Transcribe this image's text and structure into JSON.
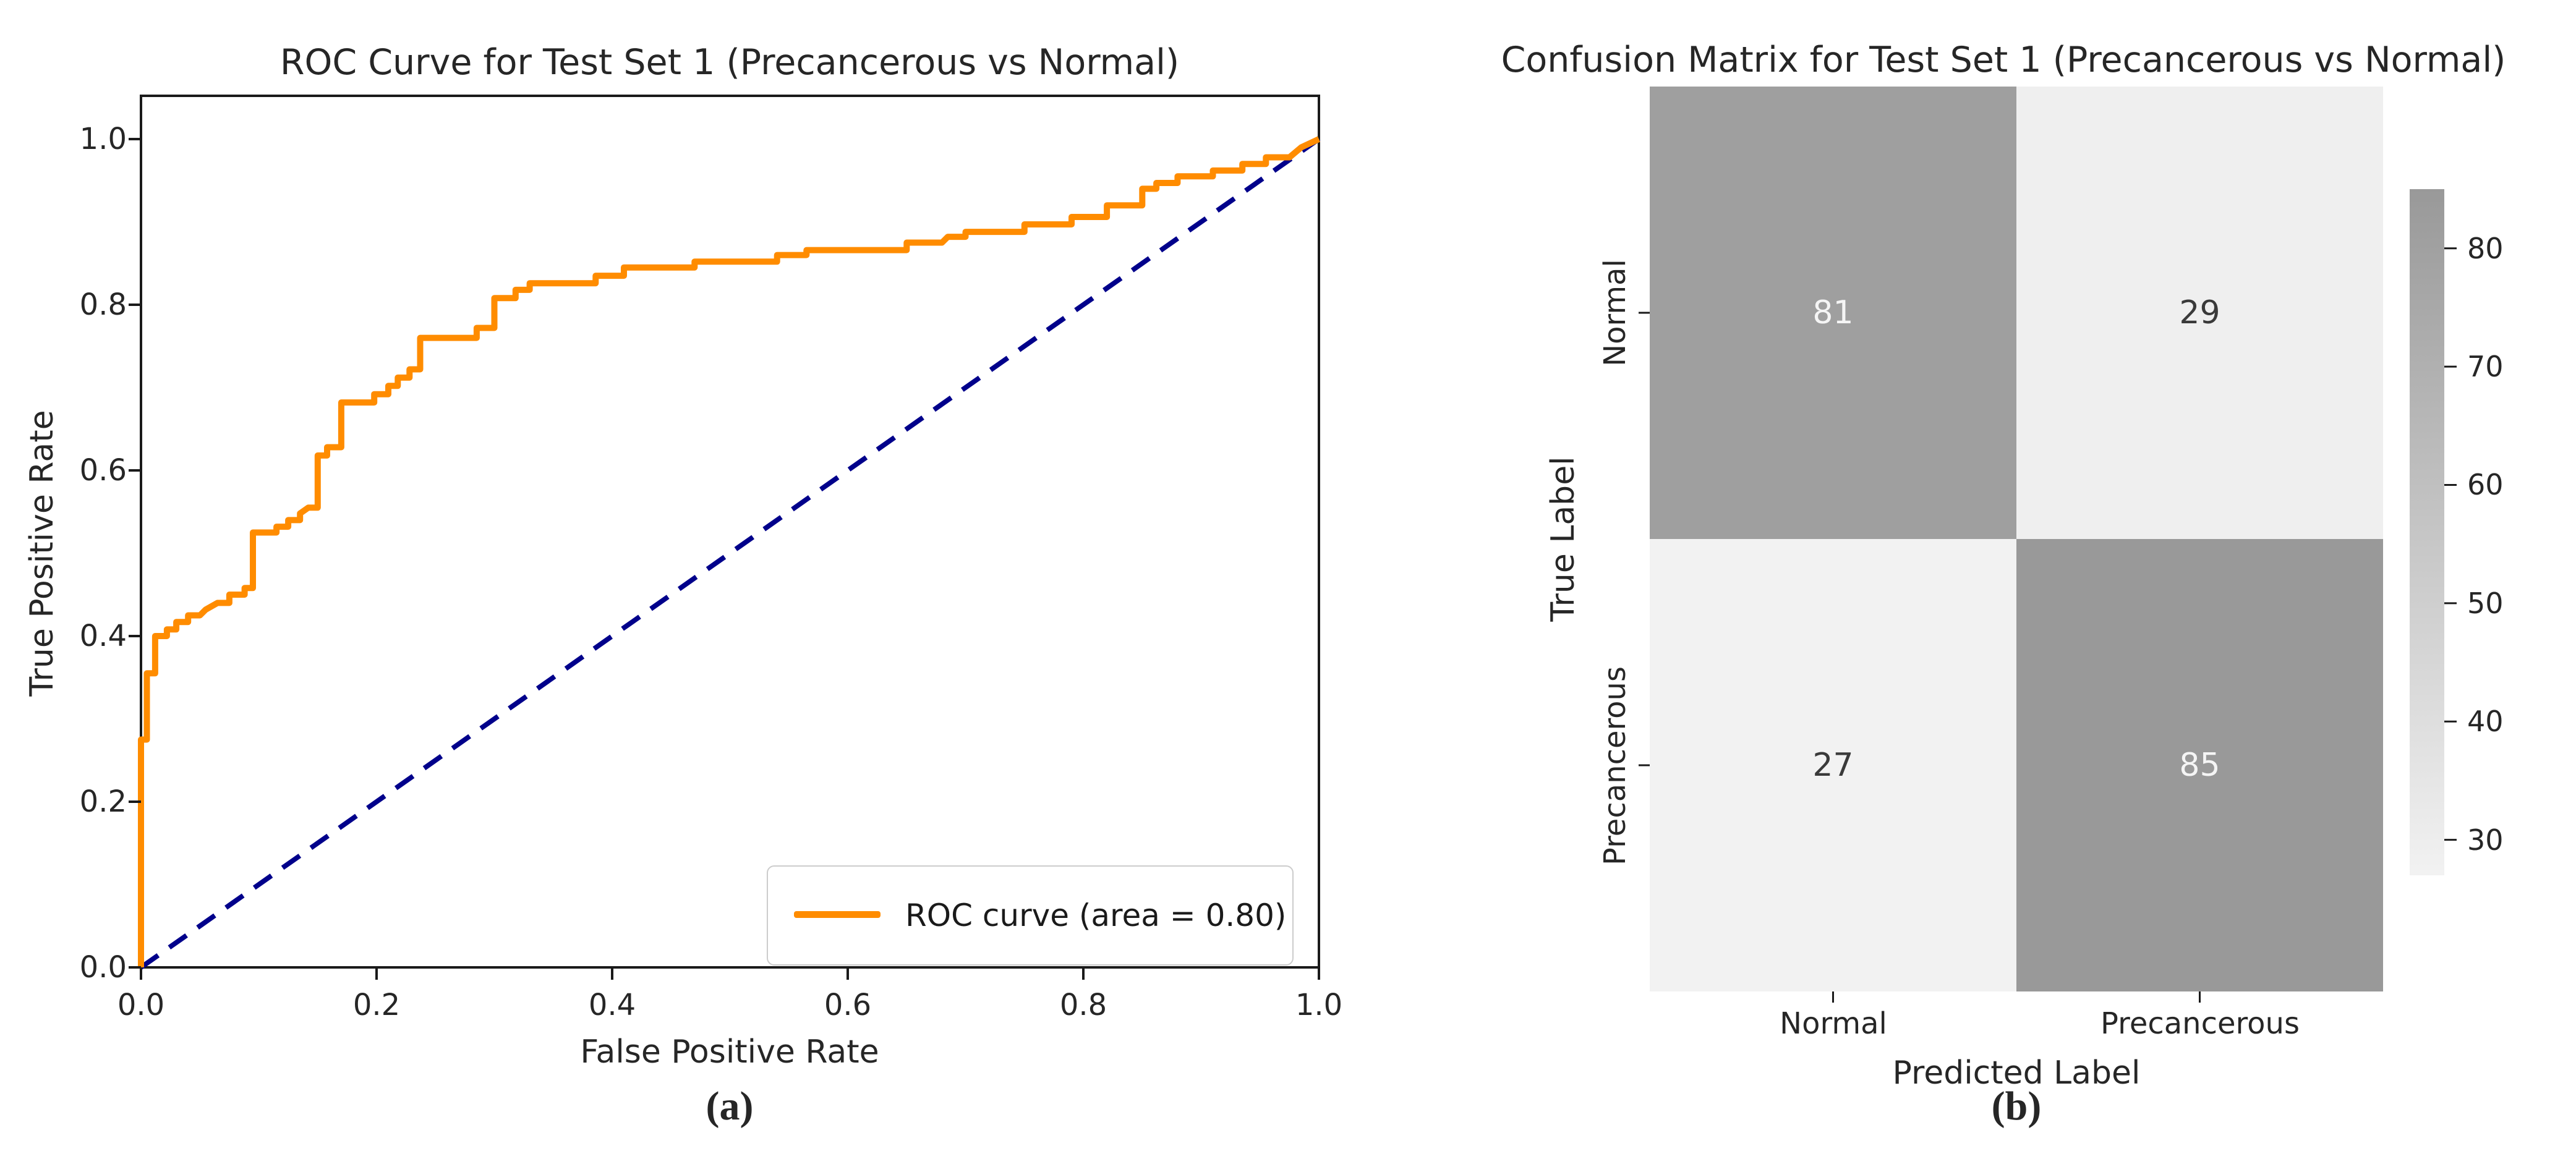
{
  "figure": {
    "caption_a": "(a)",
    "caption_b": "(b)"
  },
  "colors": {
    "roc_curve": "#ff8c00",
    "diagonal": "#00008b",
    "axis": "#1a1a1a",
    "tick_text": "#262626",
    "cmap_low": "#f2f2f2",
    "cmap_high": "#999999",
    "cell_text_light": "#f5f5f5",
    "cell_text_dark": "#3a3a3a",
    "legend_border": "#cccccc"
  },
  "chart_data": [
    {
      "type": "line",
      "title": "ROC Curve for Test Set 1 (Precancerous vs Normal)",
      "xlabel": "False Positive Rate",
      "ylabel": "True Positive Rate",
      "xlim": [
        0.0,
        1.0
      ],
      "ylim": [
        0.0,
        1.05
      ],
      "grid": false,
      "x_ticks": [
        0.0,
        0.2,
        0.4,
        0.6,
        0.8,
        1.0
      ],
      "y_ticks": [
        0.0,
        0.2,
        0.4,
        0.6,
        0.8,
        1.0
      ],
      "x_tick_labels": [
        "0.0",
        "0.2",
        "0.4",
        "0.6",
        "0.8",
        "1.0"
      ],
      "y_tick_labels": [
        "0.0",
        "0.2",
        "0.4",
        "0.6",
        "0.8",
        "1.0"
      ],
      "legend": {
        "position": "lower right",
        "label": "ROC curve (area = 0.80)"
      },
      "auc": 0.8,
      "series": [
        {
          "name": "ROC curve (area = 0.80)",
          "style": "solid",
          "color": "#ff8c00",
          "points": [
            [
              0,
              0
            ],
            [
              0,
              0.275
            ],
            [
              0.005,
              0.275
            ],
            [
              0.005,
              0.355
            ],
            [
              0.012,
              0.355
            ],
            [
              0.012,
              0.4
            ],
            [
              0.022,
              0.4
            ],
            [
              0.022,
              0.408
            ],
            [
              0.03,
              0.408
            ],
            [
              0.03,
              0.417
            ],
            [
              0.04,
              0.417
            ],
            [
              0.04,
              0.425
            ],
            [
              0.05,
              0.425
            ],
            [
              0.055,
              0.432
            ],
            [
              0.065,
              0.44
            ],
            [
              0.075,
              0.44
            ],
            [
              0.075,
              0.45
            ],
            [
              0.088,
              0.45
            ],
            [
              0.088,
              0.458
            ],
            [
              0.095,
              0.458
            ],
            [
              0.095,
              0.525
            ],
            [
              0.115,
              0.525
            ],
            [
              0.115,
              0.532
            ],
            [
              0.125,
              0.532
            ],
            [
              0.125,
              0.54
            ],
            [
              0.135,
              0.54
            ],
            [
              0.135,
              0.548
            ],
            [
              0.142,
              0.555
            ],
            [
              0.15,
              0.555
            ],
            [
              0.15,
              0.618
            ],
            [
              0.158,
              0.618
            ],
            [
              0.158,
              0.628
            ],
            [
              0.17,
              0.628
            ],
            [
              0.17,
              0.682
            ],
            [
              0.198,
              0.682
            ],
            [
              0.198,
              0.692
            ],
            [
              0.21,
              0.692
            ],
            [
              0.21,
              0.702
            ],
            [
              0.218,
              0.702
            ],
            [
              0.218,
              0.712
            ],
            [
              0.228,
              0.712
            ],
            [
              0.228,
              0.722
            ],
            [
              0.237,
              0.722
            ],
            [
              0.237,
              0.76
            ],
            [
              0.285,
              0.76
            ],
            [
              0.285,
              0.772
            ],
            [
              0.3,
              0.772
            ],
            [
              0.3,
              0.808
            ],
            [
              0.318,
              0.808
            ],
            [
              0.318,
              0.818
            ],
            [
              0.33,
              0.818
            ],
            [
              0.33,
              0.826
            ],
            [
              0.386,
              0.826
            ],
            [
              0.386,
              0.835
            ],
            [
              0.41,
              0.835
            ],
            [
              0.41,
              0.845
            ],
            [
              0.47,
              0.845
            ],
            [
              0.47,
              0.852
            ],
            [
              0.54,
              0.852
            ],
            [
              0.54,
              0.86
            ],
            [
              0.565,
              0.86
            ],
            [
              0.565,
              0.866
            ],
            [
              0.65,
              0.866
            ],
            [
              0.65,
              0.875
            ],
            [
              0.68,
              0.875
            ],
            [
              0.685,
              0.882
            ],
            [
              0.7,
              0.882
            ],
            [
              0.7,
              0.888
            ],
            [
              0.75,
              0.888
            ],
            [
              0.75,
              0.897
            ],
            [
              0.79,
              0.897
            ],
            [
              0.79,
              0.906
            ],
            [
              0.82,
              0.906
            ],
            [
              0.82,
              0.92
            ],
            [
              0.85,
              0.92
            ],
            [
              0.85,
              0.94
            ],
            [
              0.862,
              0.94
            ],
            [
              0.862,
              0.947
            ],
            [
              0.88,
              0.947
            ],
            [
              0.88,
              0.955
            ],
            [
              0.91,
              0.955
            ],
            [
              0.91,
              0.962
            ],
            [
              0.935,
              0.962
            ],
            [
              0.935,
              0.97
            ],
            [
              0.955,
              0.97
            ],
            [
              0.955,
              0.978
            ],
            [
              0.975,
              0.978
            ],
            [
              0.985,
              0.99
            ],
            [
              1,
              1
            ]
          ]
        },
        {
          "name": "chance diagonal",
          "style": "dashed",
          "color": "#00008b",
          "points": [
            [
              0,
              0
            ],
            [
              1,
              1
            ]
          ]
        }
      ]
    },
    {
      "type": "heatmap",
      "title": "Confusion Matrix for Test Set 1 (Precancerous vs Normal)",
      "xlabel": "Predicted Label",
      "ylabel": "True Label",
      "x_categories": [
        "Normal",
        "Precancerous"
      ],
      "y_categories": [
        "Normal",
        "Precancerous"
      ],
      "values": [
        [
          81,
          29
        ],
        [
          27,
          85
        ]
      ],
      "vmin": 27,
      "vmax": 85,
      "colormap": "Greys",
      "colorbar_ticks": [
        80,
        70,
        60,
        50,
        40,
        30
      ]
    }
  ]
}
